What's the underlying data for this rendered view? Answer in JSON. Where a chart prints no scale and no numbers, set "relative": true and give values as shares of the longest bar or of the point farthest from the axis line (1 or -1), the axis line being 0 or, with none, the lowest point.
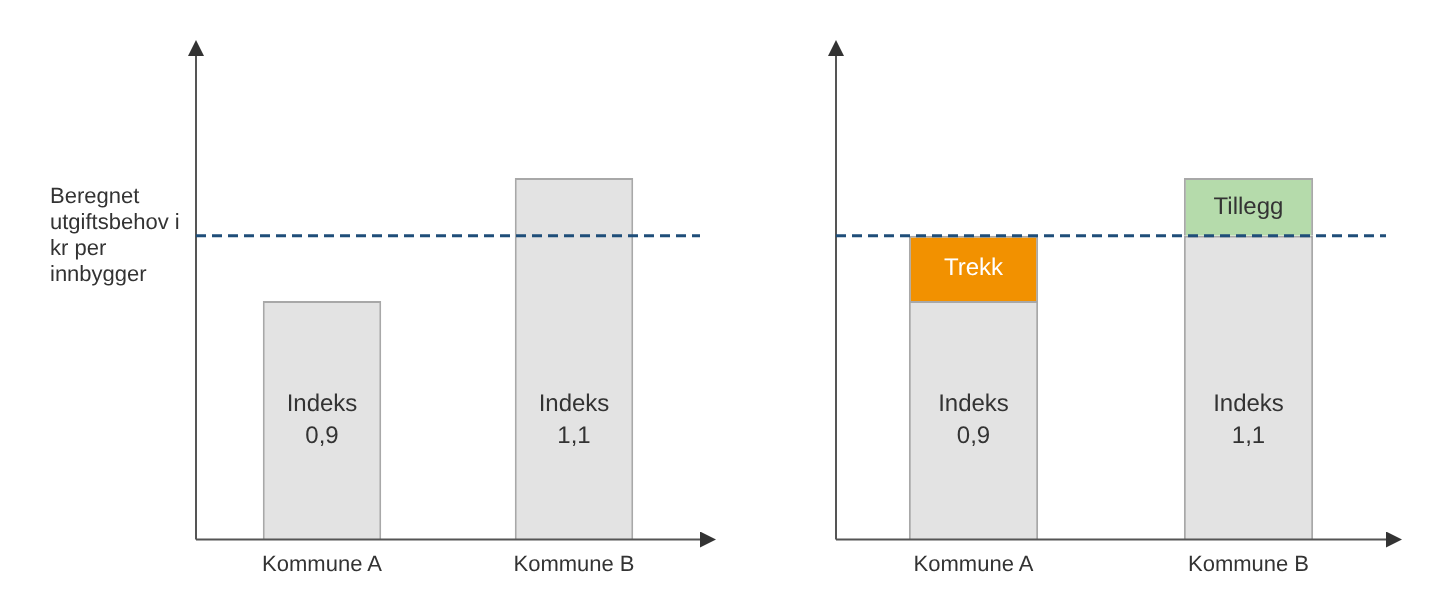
{
  "chart_data": [
    {
      "type": "bar",
      "relative": true,
      "categories": [
        "Kommune A",
        "Kommune B"
      ],
      "series": [
        {
          "color": "#e3e3e3",
          "values": [
            0.66,
            1
          ]
        }
      ],
      "ref_lines": [
        {
          "axis": "y",
          "value": 0.84,
          "label": "Beregnet utgiftsbehov i kr per innbygger",
          "color": "#1f4e79",
          "line_style": "dashed"
        }
      ],
      "annotations": [
        "Indeks 0,9",
        "Indeks 1,1"
      ],
      "tick_labels": "x",
      "grid": false,
      "legend": false
    },
    {
      "type": "bar",
      "relative": true,
      "stacked": true,
      "categories": [
        "Kommune A",
        "Kommune B"
      ],
      "series": [
        {
          "color": "#e3e3e3",
          "values": [
            0.66,
            0.84
          ]
        },
        {
          "name": "Trekk",
          "color": "#f29100",
          "values": [
            0.18,
            null
          ]
        },
        {
          "name": "Tillegg",
          "color": "#b5dbab",
          "values": [
            null,
            0.16
          ]
        }
      ],
      "ref_lines": [
        {
          "axis": "y",
          "value": 0.84,
          "color": "#1f4e79",
          "line_style": "dashed"
        }
      ],
      "annotations": [
        "Indeks 0,9",
        "Indeks 1,1"
      ],
      "tick_labels": "x",
      "grid": false,
      "legend": false
    }
  ]
}
